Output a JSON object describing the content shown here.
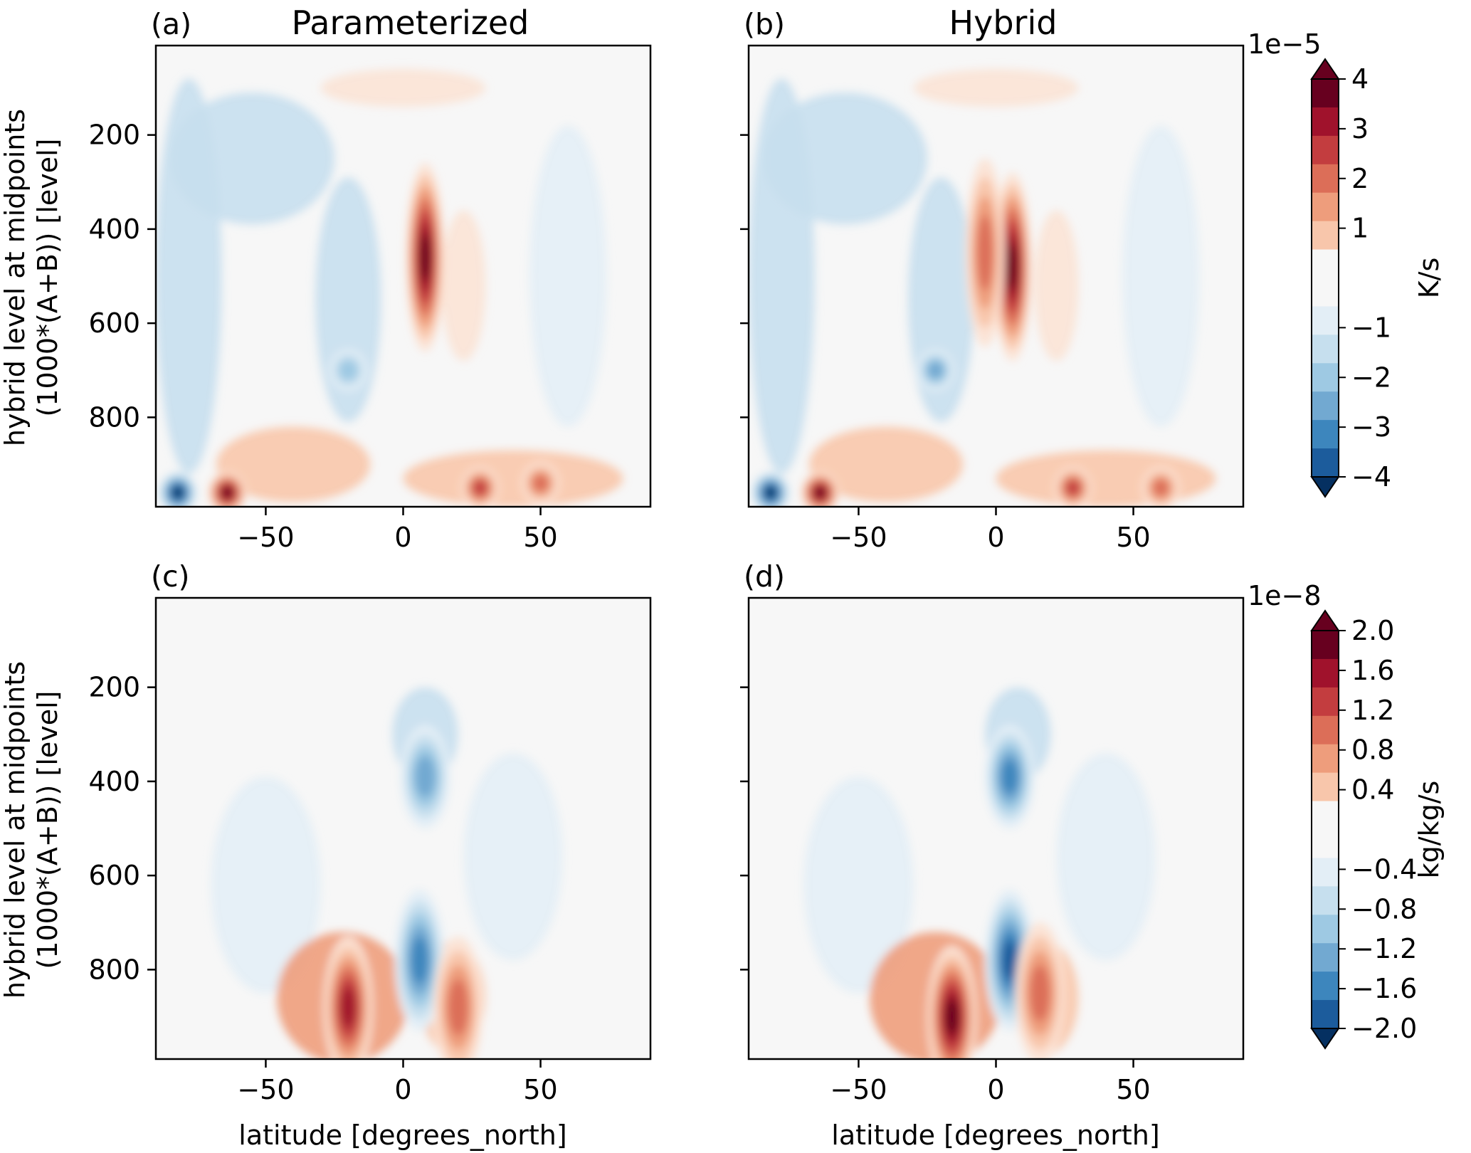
{
  "figure": {
    "ylabel_line1": "hybrid level at midpoints",
    "ylabel_line2": "(1000*(A+B)) [level]",
    "xlabel": "latitude [degrees_north]",
    "background_color": "#f7f7f7",
    "colormap": "RdBu_r"
  },
  "chart_data": [
    {
      "type": "heatmap",
      "panel_label": "(a)",
      "title": "Parameterized",
      "x_ticks": [
        -50,
        0,
        50
      ],
      "y_ticks": [
        200,
        400,
        600,
        800
      ],
      "xlim": [
        -90,
        90
      ],
      "ylim": [
        990,
        10
      ],
      "y_inverted": true,
      "field": "temperature tendency",
      "features": [
        {
          "kind": "blob",
          "lat": 8,
          "lev": 460,
          "value": 3.8e-05
        },
        {
          "kind": "blob",
          "lat": -64,
          "lev": 960,
          "value": 4.2e-05
        },
        {
          "kind": "blob",
          "lat": -82,
          "lev": 960,
          "value": -4.2e-05
        },
        {
          "kind": "blob",
          "lat": 28,
          "lev": 950,
          "value": 2.6e-05
        },
        {
          "kind": "blob",
          "lat": -20,
          "lev": 700,
          "value": -1.8e-05
        },
        {
          "kind": "blob",
          "lat": 50,
          "lev": 940,
          "value": 2e-05
        }
      ]
    },
    {
      "type": "heatmap",
      "panel_label": "(b)",
      "title": "Hybrid",
      "x_ticks": [
        -50,
        0,
        50
      ],
      "xlim": [
        -90,
        90
      ],
      "ylim": [
        990,
        10
      ],
      "y_inverted": true,
      "field": "temperature tendency",
      "features": [
        {
          "kind": "blob",
          "lat": 6,
          "lev": 480,
          "value": 4.3e-05
        },
        {
          "kind": "blob",
          "lat": -64,
          "lev": 960,
          "value": 4.2e-05
        },
        {
          "kind": "blob",
          "lat": -82,
          "lev": 960,
          "value": -4.3e-05
        },
        {
          "kind": "blob",
          "lat": -4,
          "lev": 450,
          "value": 2e-05
        },
        {
          "kind": "blob",
          "lat": 28,
          "lev": 950,
          "value": 2.6e-05
        },
        {
          "kind": "blob",
          "lat": -22,
          "lev": 700,
          "value": -2.2e-05
        },
        {
          "kind": "blob",
          "lat": 60,
          "lev": 950,
          "value": 2.5e-05
        }
      ]
    },
    {
      "type": "heatmap",
      "panel_label": "(c)",
      "x_ticks": [
        -50,
        0,
        50
      ],
      "y_ticks": [
        200,
        400,
        600,
        800
      ],
      "xlim": [
        -90,
        90
      ],
      "ylim": [
        990,
        10
      ],
      "y_inverted": true,
      "field": "moisture tendency",
      "features": [
        {
          "kind": "blob",
          "lat": -20,
          "lev": 880,
          "value": 1.7e-08
        },
        {
          "kind": "blob",
          "lat": 6,
          "lev": 780,
          "value": -1.3e-08
        },
        {
          "kind": "blob",
          "lat": 8,
          "lev": 390,
          "value": -1.1e-08
        },
        {
          "kind": "blob",
          "lat": 20,
          "lev": 880,
          "value": 1.1e-08
        }
      ]
    },
    {
      "type": "heatmap",
      "panel_label": "(d)",
      "x_ticks": [
        -50,
        0,
        50
      ],
      "xlim": [
        -90,
        90
      ],
      "ylim": [
        990,
        10
      ],
      "y_inverted": true,
      "field": "moisture tendency",
      "features": [
        {
          "kind": "blob",
          "lat": -16,
          "lev": 900,
          "value": 2e-08
        },
        {
          "kind": "blob",
          "lat": 5,
          "lev": 780,
          "value": -1.7e-08
        },
        {
          "kind": "blob",
          "lat": 5,
          "lev": 390,
          "value": -1.3e-08
        },
        {
          "kind": "blob",
          "lat": 16,
          "lev": 850,
          "value": 1.2e-08
        }
      ]
    }
  ],
  "colorbars": [
    {
      "unit_label": "K/s",
      "exponent_label": "1e−5",
      "ticks": [
        "4",
        "3",
        "2",
        "1",
        "−1",
        "−2",
        "−3",
        "−4"
      ],
      "tick_values": [
        4,
        3,
        2,
        1,
        -1,
        -2,
        -3,
        -4
      ],
      "range": [
        -4,
        4
      ],
      "extend": "both"
    },
    {
      "unit_label": "kg/kg/s",
      "exponent_label": "1e−8",
      "ticks": [
        "2.0",
        "1.6",
        "1.2",
        "0.8",
        "0.4",
        "−0.4",
        "−0.8",
        "−1.2",
        "−1.6",
        "−2.0"
      ],
      "tick_values": [
        2.0,
        1.6,
        1.2,
        0.8,
        0.4,
        -0.4,
        -0.8,
        -1.2,
        -1.6,
        -2.0
      ],
      "range": [
        -2.0,
        2.0
      ],
      "extend": "both"
    }
  ],
  "colors": {
    "levels": [
      "#053061",
      "#1c5c9c",
      "#3d86bd",
      "#72a9d1",
      "#9ec9e3",
      "#c6dfee",
      "#e3eef6",
      "#f7f7f7",
      "#fbe3d5",
      "#f8c6ab",
      "#ee9d7c",
      "#dc6e58",
      "#c33d3f",
      "#a0122c",
      "#67001f"
    ]
  }
}
